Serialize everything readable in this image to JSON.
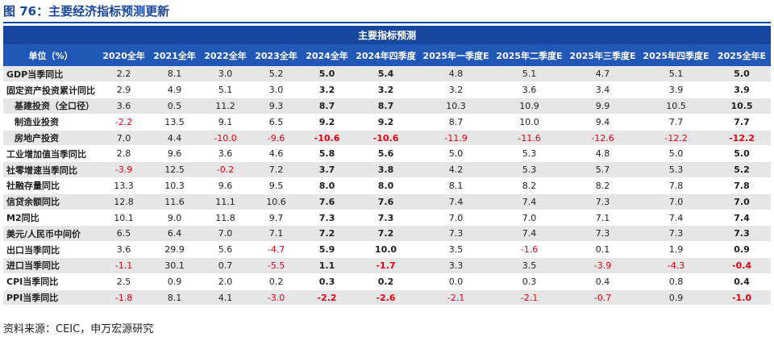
{
  "figure_title": "图 76：主要经济指标预测更新",
  "table_title": "主要指标预测",
  "columns": [
    "单位（%）",
    "2020全年",
    "2021全年",
    "2022全年",
    "2023全年",
    "2024全年",
    "2024年四季度",
    "2025年一季度E",
    "2025年二季度E",
    "2025年三季度E",
    "2025年四季度E",
    "2025全年E"
  ],
  "rows": [
    {
      "label": "GDP当季同比",
      "indent": false,
      "values": [
        "2.2",
        "8.1",
        "3.0",
        "5.2",
        "5.0",
        "5.4",
        "4.8",
        "5.1",
        "4.7",
        "5.1",
        "5.0"
      ]
    },
    {
      "label": "固定资产投资累计同比",
      "indent": false,
      "values": [
        "2.9",
        "4.9",
        "5.1",
        "3.0",
        "3.2",
        "3.2",
        "3.2",
        "3.6",
        "3.4",
        "3.9",
        "3.9"
      ]
    },
    {
      "label": "基建投资（全口径）",
      "indent": true,
      "values": [
        "3.6",
        "0.5",
        "11.2",
        "9.3",
        "8.7",
        "8.7",
        "10.3",
        "10.9",
        "9.9",
        "10.5",
        "10.5"
      ]
    },
    {
      "label": "制造业投资",
      "indent": true,
      "values": [
        "-2.2",
        "13.5",
        "9.1",
        "6.5",
        "9.2",
        "9.2",
        "8.7",
        "10.0",
        "9.4",
        "7.7",
        "7.7"
      ]
    },
    {
      "label": "房地产投资",
      "indent": true,
      "values": [
        "7.0",
        "4.4",
        "-10.0",
        "-9.6",
        "-10.6",
        "-10.6",
        "-11.9",
        "-11.6",
        "-12.6",
        "-12.2",
        "-12.2"
      ]
    },
    {
      "label": "工业增加值当季同比",
      "indent": false,
      "values": [
        "2.8",
        "9.6",
        "3.6",
        "4.6",
        "5.8",
        "5.6",
        "5.0",
        "5.3",
        "4.8",
        "5.0",
        "5.0"
      ]
    },
    {
      "label": "社零增速当季同比",
      "indent": false,
      "values": [
        "-3.9",
        "12.5",
        "-0.2",
        "7.2",
        "3.7",
        "3.8",
        "4.2",
        "5.3",
        "5.7",
        "5.3",
        "5.2"
      ]
    },
    {
      "label": "社融存量同比",
      "indent": false,
      "values": [
        "13.3",
        "10.3",
        "9.6",
        "9.5",
        "8.0",
        "8.0",
        "8.1",
        "8.2",
        "8.2",
        "7.8",
        "7.8"
      ]
    },
    {
      "label": "信贷余额同比",
      "indent": false,
      "values": [
        "12.8",
        "11.6",
        "11.1",
        "10.6",
        "7.6",
        "7.6",
        "7.4",
        "7.4",
        "7.3",
        "7.0",
        "7.0"
      ]
    },
    {
      "label": "M2同比",
      "indent": false,
      "values": [
        "10.1",
        "9.0",
        "11.8",
        "9.7",
        "7.3",
        "7.3",
        "7.0",
        "7.0",
        "7.1",
        "7.4",
        "7.4"
      ]
    },
    {
      "label": "美元/人民币中间价",
      "indent": false,
      "values": [
        "6.5",
        "6.4",
        "7.0",
        "7.1",
        "7.2",
        "7.2",
        "7.3",
        "7.4",
        "7.3",
        "7.3",
        "7.3"
      ]
    },
    {
      "label": "出口当季同比",
      "indent": false,
      "values": [
        "3.6",
        "29.9",
        "5.6",
        "-4.7",
        "5.9",
        "10.0",
        "3.5",
        "-1.6",
        "0.1",
        "1.9",
        "0.9"
      ]
    },
    {
      "label": "进口当季同比",
      "indent": false,
      "values": [
        "-1.1",
        "30.1",
        "0.7",
        "-5.5",
        "1.1",
        "-1.7",
        "3.3",
        "3.5",
        "-3.9",
        "-4.3",
        "-0.4"
      ]
    },
    {
      "label": "CPI当季同比",
      "indent": false,
      "values": [
        "2.5",
        "0.9",
        "2.0",
        "0.2",
        "0.3",
        "0.2",
        "0.0",
        "0.3",
        "0.4",
        "0.8",
        "0.4"
      ]
    },
    {
      "label": "PPI当季同比",
      "indent": false,
      "values": [
        "-1.8",
        "8.1",
        "4.1",
        "-3.0",
        "-2.2",
        "-2.6",
        "-2.1",
        "-2.1",
        "-0.7",
        "0.9",
        "-1.0"
      ]
    }
  ],
  "bold_column_indexes": [
    4,
    5,
    10
  ],
  "colors": {
    "header_dark": "#17469e",
    "header": "#2158b8",
    "negative": "#e60012",
    "stripe": "#e6e6e6"
  },
  "source": "资料来源：CEIC，申万宏源研究"
}
